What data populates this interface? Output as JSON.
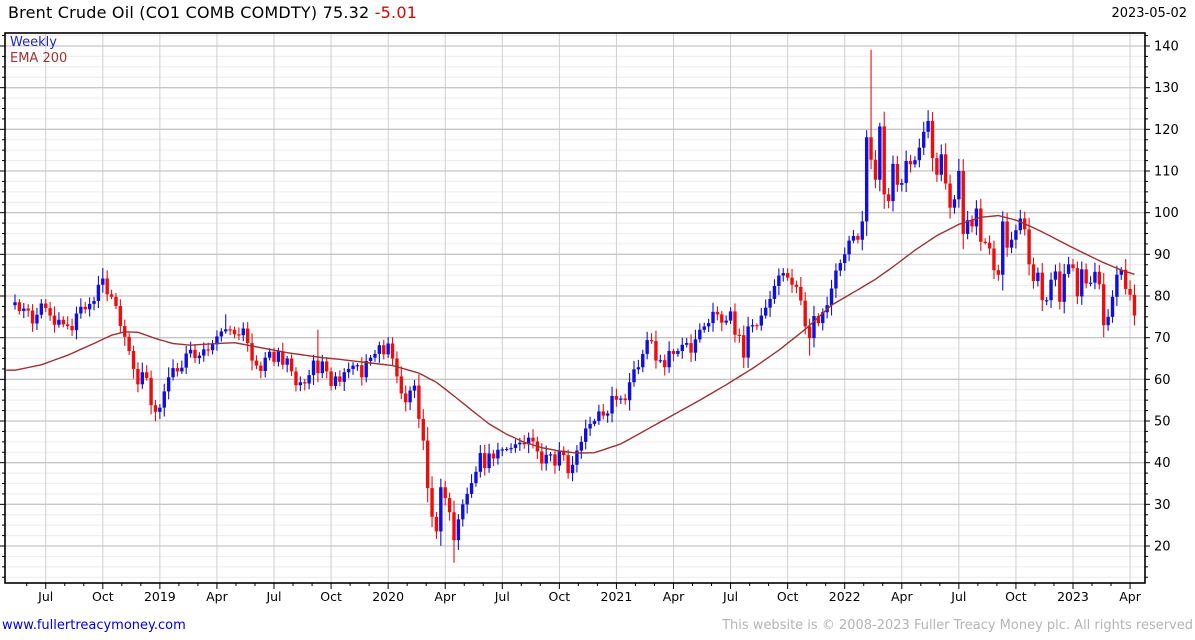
{
  "header": {
    "title": "Brent Crude Oil  (CO1 COMB COMDTY)",
    "last_price": "75.32",
    "change": "-5.01",
    "date": "2023-05-02"
  },
  "legend": {
    "series": "Weekly",
    "overlay": "EMA 200"
  },
  "footer": {
    "link": "www.fullertreacymoney.com",
    "copyright": "This website is © 2008-2023 Fuller Treacy Money plc. All rights reserved"
  },
  "chart_data": {
    "type": "candlestick",
    "title": "Brent Crude Oil (CO1 COMB COMDTY)",
    "frequency": "weekly",
    "start_week": "2018-05-14",
    "end_week": "2023-05-01",
    "last_close": 75.32,
    "change": -5.01,
    "ylim": [
      11,
      143
    ],
    "y_ticks": [
      20,
      30,
      40,
      50,
      60,
      70,
      80,
      90,
      100,
      110,
      120,
      130,
      140
    ],
    "y_minor_step": 2.5,
    "grid": true,
    "legend_position": "top-left",
    "x_tick_labels": [
      "Jul",
      "Oct",
      "2019",
      "Apr",
      "Jul",
      "Oct",
      "2020",
      "Apr",
      "Jul",
      "Oct",
      "2021",
      "Apr",
      "Jul",
      "Oct",
      "2022",
      "Apr",
      "Jul",
      "Oct",
      "2023",
      "Apr"
    ],
    "x_tick_weeks": [
      7,
      20,
      33,
      46,
      59,
      72,
      85,
      98,
      111,
      124,
      137,
      150,
      163,
      176,
      189,
      202,
      215,
      228,
      241,
      254
    ],
    "weekly_closes": [
      78.5,
      76.4,
      77.0,
      76.5,
      73.4,
      75.5,
      78.2,
      77.1,
      75.3,
      73.1,
      74.3,
      73.2,
      72.8,
      71.8,
      75.8,
      77.4,
      76.8,
      78.1,
      78.8,
      82.7,
      84.2,
      80.4,
      79.8,
      77.6,
      72.8,
      70.2,
      66.8,
      62.5,
      58.8,
      61.7,
      60.3,
      53.8,
      52.2,
      53.2,
      57.1,
      60.5,
      62.7,
      61.9,
      62.8,
      66.2,
      67.1,
      65.1,
      65.7,
      67.2,
      67.0,
      68.4,
      70.3,
      71.5,
      72.0,
      71.9,
      70.8,
      70.6,
      72.2,
      68.7,
      64.5,
      63.3,
      62.0,
      65.2,
      66.6,
      64.2,
      66.7,
      63.5,
      65.0,
      61.9,
      58.6,
      59.3,
      59.0,
      61.0,
      64.5,
      61.5,
      64.3,
      61.9,
      58.4,
      60.7,
      59.4,
      61.7,
      62.5,
      63.3,
      63.4,
      60.5,
      64.4,
      65.2,
      66.1,
      68.2,
      66.0,
      68.6,
      65.0,
      60.7,
      56.6,
      54.5,
      57.3,
      58.5,
      50.5,
      45.3,
      33.9,
      27.0,
      23.5,
      34.1,
      31.5,
      28.1,
      21.4,
      26.4,
      30.0,
      32.5,
      35.1,
      37.8,
      42.3,
      38.7,
      42.2,
      41.0,
      43.1,
      43.2,
      43.3,
      43.5,
      44.4,
      44.8,
      44.4,
      46.0,
      45.1,
      42.7,
      39.8,
      41.9,
      42.0,
      39.3,
      42.9,
      41.8,
      37.5,
      39.5,
      42.9,
      45.0,
      48.2,
      49.3,
      50.0,
      52.3,
      51.3,
      51.8,
      56.0,
      55.1,
      55.4,
      55.0,
      59.3,
      62.4,
      62.9,
      66.1,
      69.4,
      69.2,
      64.5,
      64.6,
      62.9,
      66.8,
      66.1,
      66.8,
      68.3,
      68.7,
      66.4,
      69.6,
      71.9,
      72.7,
      73.5,
      76.2,
      75.6,
      73.6,
      74.1,
      76.3,
      70.7,
      70.6,
      65.2,
      72.7,
      73.0,
      72.9,
      75.3,
      77.2,
      79.3,
      82.4,
      84.9,
      85.5,
      84.4,
      82.7,
      82.2,
      78.9,
      72.7,
      69.9,
      75.2,
      73.5,
      76.1,
      77.8,
      81.8,
      86.1,
      87.9,
      90.0,
      93.3,
      94.4,
      93.5,
      97.9,
      118.1,
      112.7,
      107.9,
      120.7,
      104.4,
      102.8,
      111.7,
      106.7,
      107.1,
      112.4,
      111.6,
      112.6,
      115.6,
      119.4,
      122.0,
      113.1,
      109.1,
      114.0,
      107.0,
      101.2,
      103.2,
      110.0,
      94.9,
      98.2,
      96.7,
      101.0,
      93.0,
      92.8,
      91.4,
      86.2,
      85.1,
      97.9,
      91.6,
      93.5,
      95.8,
      98.6,
      96.0,
      87.6,
      83.6,
      85.6,
      79.0,
      79.0,
      83.9,
      85.9,
      78.6,
      85.3,
      87.6,
      86.7,
      79.9,
      86.4,
      83.0,
      83.2,
      85.8,
      82.8,
      73.0,
      75.0,
      79.8,
      85.1,
      86.3,
      81.7,
      80.3,
      75.3
    ],
    "first_open": 77.8,
    "wick_overrides": {
      "20": {
        "h": 86.7
      },
      "32": {
        "l": 49.9
      },
      "48": {
        "h": 75.6
      },
      "69": {
        "h": 71.9
      },
      "93": {
        "l": 43.0
      },
      "96": {
        "l": 21.7
      },
      "100": {
        "l": 16.0
      },
      "144": {
        "h": 71.4
      },
      "175": {
        "h": 86.7
      },
      "181": {
        "l": 65.7
      },
      "194": {
        "h": 119.8
      },
      "195": {
        "h": 139.1
      },
      "197": {
        "h": 121.6
      },
      "208": {
        "h": 124.6
      },
      "248": {
        "l": 70.1
      }
    },
    "ema_200_anchors": [
      [
        0,
        62.2
      ],
      [
        6,
        63.5
      ],
      [
        12,
        65.8
      ],
      [
        18,
        68.6
      ],
      [
        22,
        70.6
      ],
      [
        25,
        71.4
      ],
      [
        28,
        71.3
      ],
      [
        32,
        69.8
      ],
      [
        36,
        68.6
      ],
      [
        40,
        68.2
      ],
      [
        46,
        68.6
      ],
      [
        50,
        68.8
      ],
      [
        54,
        68.0
      ],
      [
        58,
        67.2
      ],
      [
        62,
        66.4
      ],
      [
        66,
        65.8
      ],
      [
        70,
        65.2
      ],
      [
        74,
        64.8
      ],
      [
        78,
        64.3
      ],
      [
        82,
        63.8
      ],
      [
        86,
        63.3
      ],
      [
        88,
        62.7
      ],
      [
        92,
        61.5
      ],
      [
        96,
        59.3
      ],
      [
        100,
        56.0
      ],
      [
        104,
        52.6
      ],
      [
        108,
        49.3
      ],
      [
        112,
        46.8
      ],
      [
        116,
        44.9
      ],
      [
        120,
        43.6
      ],
      [
        124,
        42.8
      ],
      [
        128,
        42.3
      ],
      [
        132,
        42.4
      ],
      [
        138,
        44.5
      ],
      [
        144,
        48.0
      ],
      [
        150,
        51.5
      ],
      [
        156,
        55.0
      ],
      [
        162,
        58.7
      ],
      [
        168,
        62.6
      ],
      [
        174,
        67.0
      ],
      [
        180,
        72.0
      ],
      [
        186,
        77.8
      ],
      [
        192,
        81.5
      ],
      [
        196,
        84.0
      ],
      [
        200,
        87.0
      ],
      [
        205,
        91.0
      ],
      [
        210,
        94.5
      ],
      [
        215,
        97.2
      ],
      [
        220,
        98.9
      ],
      [
        224,
        99.3
      ],
      [
        228,
        98.2
      ],
      [
        232,
        96.4
      ],
      [
        236,
        94.3
      ],
      [
        240,
        92.1
      ],
      [
        244,
        90.0
      ],
      [
        248,
        88.0
      ],
      [
        252,
        86.2
      ],
      [
        255,
        85.2
      ]
    ],
    "colors": {
      "up": "#0f0fe0",
      "down": "#ee0d0d",
      "ema": "#993333",
      "grid_major": "#c6c6c6",
      "grid_minor": "#ececec",
      "grid_vert": "#cfcfcf",
      "axis": "#000000"
    }
  }
}
